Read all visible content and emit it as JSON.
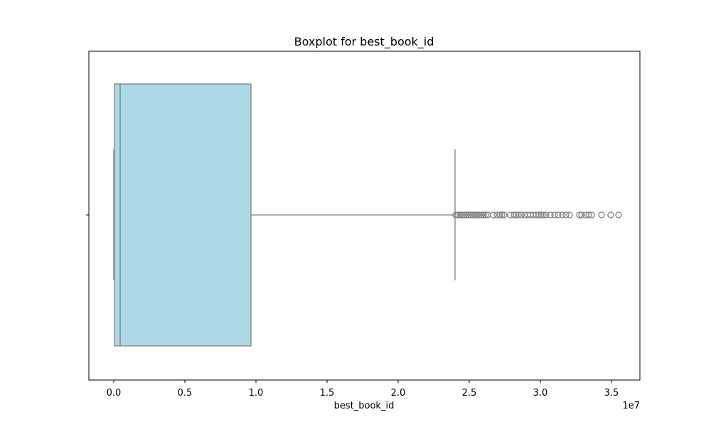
{
  "chart_data": {
    "type": "boxplot",
    "title": "Boxplot for best_book_id",
    "xlabel": "best_book_id",
    "ylabel": "",
    "axis_multiplier": "1e7",
    "xlim": [
      -1750000,
      37000000
    ],
    "x_ticks": [
      0,
      5000000,
      10000000,
      15000000,
      20000000,
      25000000,
      30000000,
      35000000
    ],
    "x_tick_labels": [
      "0.0",
      "0.5",
      "1.0",
      "1.5",
      "2.0",
      "2.5",
      "3.0",
      "3.5"
    ],
    "grid": false,
    "orientation": "horizontal",
    "box": {
      "whisker_low": 1,
      "q1": 50000,
      "median": 450000,
      "q3": 9650000,
      "whisker_high": 24000000
    },
    "outliers": [
      24050000,
      24200000,
      24350000,
      24500000,
      24650000,
      24800000,
      24950000,
      25100000,
      25250000,
      25400000,
      25550000,
      25700000,
      25850000,
      26000000,
      26150000,
      26300000,
      26700000,
      26950000,
      27150000,
      27300000,
      27450000,
      27900000,
      28150000,
      28300000,
      28450000,
      28650000,
      28900000,
      29100000,
      29300000,
      29500000,
      29700000,
      29900000,
      30050000,
      30200000,
      30400000,
      30700000,
      31000000,
      31250000,
      31550000,
      31800000,
      32050000,
      32750000,
      32900000,
      33200000,
      33400000,
      33600000,
      34300000,
      34950000,
      35500000
    ],
    "colors": {
      "box_fill": "#add8e6",
      "line": "#808080",
      "frame": "#000000"
    }
  }
}
